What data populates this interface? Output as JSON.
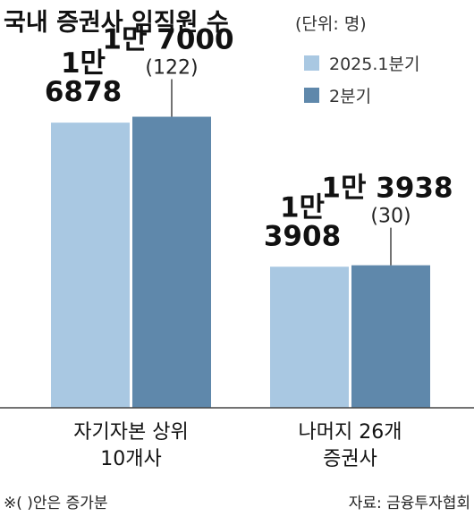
{
  "title": "국내 증권사 임직원 수",
  "unit": "(단위: 명)",
  "footnote": "※( )안은 증가분",
  "source": "자료: 금융투자협회",
  "colors": {
    "series1": "#a9c8e2",
    "series2": "#5f88ab",
    "axis": "#444444"
  },
  "chart_data": {
    "type": "bar",
    "categories": [
      "자기자본 상위\n10개사",
      "나머지 26개\n증권사"
    ],
    "series": [
      {
        "name": "2025.1분기",
        "values": [
          16878,
          13908
        ],
        "labels": [
          "1만\n6878",
          "1만\n3908"
        ]
      },
      {
        "name": "2분기",
        "values": [
          17000,
          13938
        ],
        "labels": [
          "1만 7000",
          "1만 3938"
        ],
        "increase": [
          "(122)",
          "(30)"
        ]
      }
    ],
    "ylim": [
      11000,
      18300
    ],
    "title": "국내 증권사 임직원 수",
    "unit": "(단위: 명)"
  }
}
